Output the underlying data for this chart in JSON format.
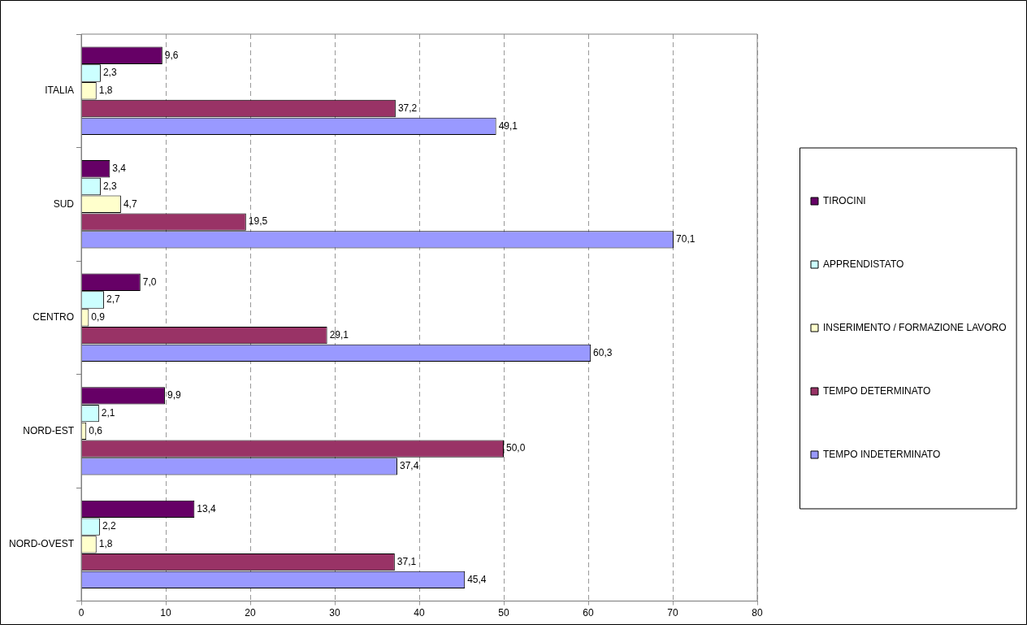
{
  "chart_data": {
    "type": "bar",
    "orientation": "horizontal",
    "categories": [
      "ITALIA",
      "SUD",
      "CENTRO",
      "NORD-EST",
      "NORD-OVEST"
    ],
    "series": [
      {
        "name": "TIROCINI",
        "color": "#660066",
        "values": [
          9.6,
          3.4,
          7.0,
          9.9,
          13.4
        ],
        "value_labels": [
          "9,6",
          "3,4",
          "7,0",
          "9,9",
          "13,4"
        ]
      },
      {
        "name": "APPRENDISTATO",
        "color": "#ccffff",
        "values": [
          2.3,
          2.3,
          2.7,
          2.1,
          2.2
        ],
        "value_labels": [
          "2,3",
          "2,3",
          "2,7",
          "2,1",
          "2,2"
        ]
      },
      {
        "name": "INSERIMENTO / FORMAZIONE LAVORO",
        "color": "#ffffcc",
        "values": [
          1.8,
          4.7,
          0.9,
          0.6,
          1.8
        ],
        "value_labels": [
          "1,8",
          "4,7",
          "0,9",
          "0,6",
          "1,8"
        ]
      },
      {
        "name": "TEMPO DETERMINATO",
        "color": "#993366",
        "values": [
          37.2,
          19.5,
          29.1,
          50.0,
          37.1
        ],
        "value_labels": [
          "37,2",
          "19,5",
          "29,1",
          "50,0",
          "37,1"
        ]
      },
      {
        "name": "TEMPO INDETERMINATO",
        "color": "#9999ff",
        "values": [
          49.1,
          70.1,
          60.3,
          37.4,
          45.4
        ],
        "value_labels": [
          "49,1",
          "70,1",
          "60,3",
          "37,4",
          "45,4"
        ]
      }
    ],
    "xlim": [
      0,
      80
    ],
    "xticks": [
      0,
      10,
      20,
      30,
      40,
      50,
      60,
      70,
      80
    ],
    "grid": "x",
    "legend": "right"
  }
}
